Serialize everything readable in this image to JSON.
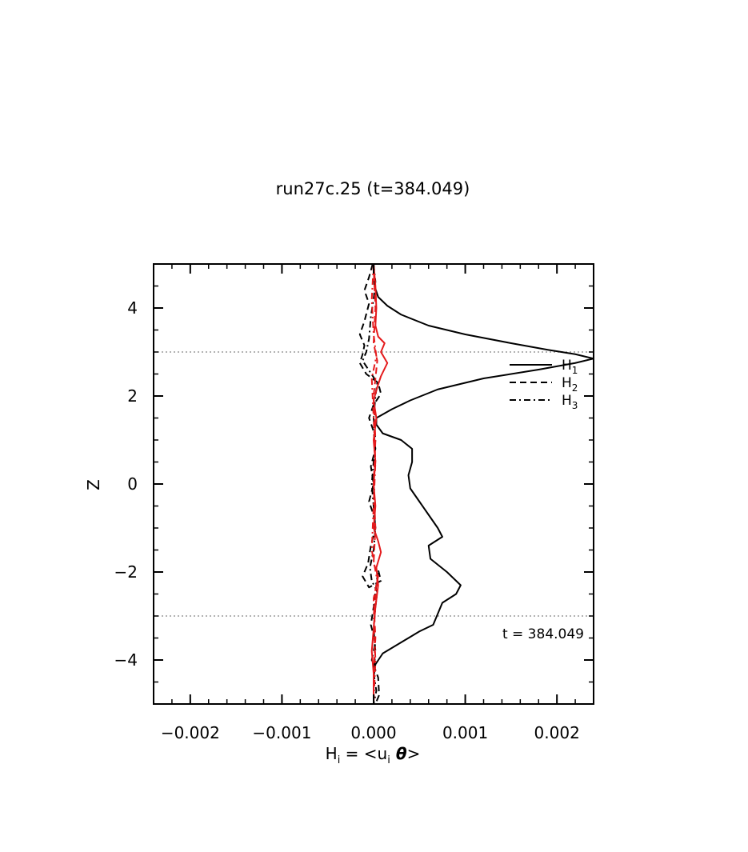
{
  "chart_data": {
    "type": "line",
    "title": "run27c.25 (t=384.049)",
    "xlabel": {
      "base": "H",
      "sub": "i",
      "mid": " = <u",
      "sub2": "i",
      "theta": " θ",
      "end": ">"
    },
    "ylabel": "Z",
    "xlim": [
      -0.0024,
      0.0024
    ],
    "ylim": [
      -5,
      5
    ],
    "xticks": [
      -0.002,
      -0.001,
      0.0,
      0.001,
      0.002
    ],
    "xtick_labels": [
      "−0.002",
      "−0.001",
      "0.000",
      "0.001",
      "0.002"
    ],
    "yticks": [
      -4,
      -2,
      0,
      2,
      4
    ],
    "ytick_labels": [
      "−4",
      "−2",
      "0",
      "2",
      "4"
    ],
    "reference_lines_y": [
      3,
      -3
    ],
    "annotation": "t = 384.049",
    "legend": {
      "placement": "right, below upper reference line",
      "entries": [
        {
          "base": "H",
          "sub": "1",
          "style": "solid"
        },
        {
          "base": "H",
          "sub": "2",
          "style": "dashed"
        },
        {
          "base": "H",
          "sub": "3",
          "style": "dashdot"
        }
      ]
    },
    "series": [
      {
        "style": "solid",
        "color": "#000000",
        "points": [
          [
            0.0,
            5.0
          ],
          [
            1e-05,
            4.5
          ],
          [
            5e-05,
            4.25
          ],
          [
            0.00015,
            4.05
          ],
          [
            0.0003,
            3.85
          ],
          [
            0.0006,
            3.6
          ],
          [
            0.001,
            3.4
          ],
          [
            0.0015,
            3.2
          ],
          [
            0.0019,
            3.05
          ],
          [
            0.0022,
            2.95
          ],
          [
            0.0024,
            2.85
          ],
          [
            0.0022,
            2.75
          ],
          [
            0.0018,
            2.6
          ],
          [
            0.0012,
            2.4
          ],
          [
            0.0007,
            2.15
          ],
          [
            0.0004,
            1.9
          ],
          [
            0.0002,
            1.7
          ],
          [
            3e-05,
            1.5
          ],
          [
            3e-05,
            1.35
          ],
          [
            0.0001,
            1.15
          ],
          [
            0.0003,
            1.0
          ],
          [
            0.00042,
            0.8
          ],
          [
            0.00042,
            0.5
          ],
          [
            0.00038,
            0.2
          ],
          [
            0.0004,
            -0.1
          ],
          [
            0.0005,
            -0.4
          ],
          [
            0.0006,
            -0.7
          ],
          [
            0.0007,
            -1.0
          ],
          [
            0.00075,
            -1.2
          ],
          [
            0.0006,
            -1.4
          ],
          [
            0.00062,
            -1.7
          ],
          [
            0.0008,
            -2.0
          ],
          [
            0.00095,
            -2.3
          ],
          [
            0.0009,
            -2.5
          ],
          [
            0.00075,
            -2.7
          ],
          [
            0.0007,
            -2.95
          ],
          [
            0.00065,
            -3.2
          ],
          [
            0.0005,
            -3.35
          ],
          [
            0.0003,
            -3.6
          ],
          [
            0.0001,
            -3.85
          ],
          [
            2e-05,
            -4.1
          ],
          [
            0.0,
            -4.4
          ],
          [
            0.0,
            -5.0
          ]
        ]
      },
      {
        "style": "dashed",
        "color": "#000000",
        "points": [
          [
            -1e-05,
            5.0
          ],
          [
            -5e-05,
            4.7
          ],
          [
            -0.0001,
            4.4
          ],
          [
            -5e-05,
            4.1
          ],
          [
            -0.0001,
            3.7
          ],
          [
            -0.00015,
            3.4
          ],
          [
            -0.0001,
            3.15
          ],
          [
            -0.00012,
            2.95
          ],
          [
            -0.00015,
            2.75
          ],
          [
            -8e-05,
            2.5
          ],
          [
            5e-05,
            2.3
          ],
          [
            8e-05,
            2.05
          ],
          [
            0.0,
            1.8
          ],
          [
            -5e-05,
            1.5
          ],
          [
            0.0,
            1.2
          ],
          [
            2e-05,
            0.8
          ],
          [
            -3e-05,
            0.4
          ],
          [
            0.0,
            0.0
          ],
          [
            -5e-05,
            -0.4
          ],
          [
            0.0,
            -0.7
          ],
          [
            2e-05,
            -1.0
          ],
          [
            -3e-05,
            -1.4
          ],
          [
            -6e-05,
            -1.8
          ],
          [
            -0.00012,
            -2.1
          ],
          [
            -5e-05,
            -2.35
          ],
          [
            8e-05,
            -2.2
          ],
          [
            5e-05,
            -1.95
          ],
          [
            0.0,
            -2.8
          ],
          [
            -3e-05,
            -3.2
          ],
          [
            2e-05,
            -3.6
          ],
          [
            -2e-05,
            -4.0
          ],
          [
            5e-05,
            -4.4
          ],
          [
            6e-05,
            -4.8
          ],
          [
            2e-05,
            -5.0
          ]
        ]
      },
      {
        "style": "dashdot",
        "color": "#000000",
        "points": [
          [
            0.0,
            5.0
          ],
          [
            2e-05,
            4.6
          ],
          [
            0.0,
            4.2
          ],
          [
            -3e-05,
            3.8
          ],
          [
            -5e-05,
            3.3
          ],
          [
            -8e-05,
            3.0
          ],
          [
            -0.00012,
            2.8
          ],
          [
            -4e-05,
            2.55
          ],
          [
            4e-05,
            2.3
          ],
          [
            2e-05,
            2.0
          ],
          [
            0.0,
            1.5
          ],
          [
            2e-05,
            1.0
          ],
          [
            0.0,
            0.5
          ],
          [
            -2e-05,
            0.0
          ],
          [
            0.0,
            -0.5
          ],
          [
            2e-05,
            -1.0
          ],
          [
            0.0,
            -1.5
          ],
          [
            -4e-05,
            -1.9
          ],
          [
            -2e-05,
            -2.2
          ],
          [
            4e-05,
            -2.45
          ],
          [
            2e-05,
            -2.8
          ],
          [
            0.0,
            -3.3
          ],
          [
            2e-05,
            -3.8
          ],
          [
            0.0,
            -4.3
          ],
          [
            3e-05,
            -4.7
          ],
          [
            0.0,
            -5.0
          ]
        ]
      },
      {
        "style": "solid",
        "color": "#e41a1c",
        "points": [
          [
            0.0,
            5.0
          ],
          [
            2e-05,
            4.5
          ],
          [
            3e-05,
            4.0
          ],
          [
            2e-05,
            3.6
          ],
          [
            5e-05,
            3.35
          ],
          [
            0.00012,
            3.2
          ],
          [
            8e-05,
            3.0
          ],
          [
            0.00015,
            2.75
          ],
          [
            8e-05,
            2.45
          ],
          [
            4e-05,
            2.2
          ],
          [
            0.0,
            1.9
          ],
          [
            3e-05,
            1.5
          ],
          [
            0.0,
            1.0
          ],
          [
            2e-05,
            0.5
          ],
          [
            0.0,
            0.0
          ],
          [
            2e-05,
            -0.5
          ],
          [
            0.0,
            -1.0
          ],
          [
            5e-05,
            -1.3
          ],
          [
            8e-05,
            -1.55
          ],
          [
            3e-05,
            -1.9
          ],
          [
            5e-05,
            -2.3
          ],
          [
            2e-05,
            -2.8
          ],
          [
            0.0,
            -3.3
          ],
          [
            -2e-05,
            -3.8
          ],
          [
            0.0,
            -4.3
          ],
          [
            0.0,
            -5.0
          ]
        ]
      },
      {
        "style": "dashed",
        "color": "#e41a1c",
        "points": [
          [
            0.0,
            5.0
          ],
          [
            2e-05,
            4.0
          ],
          [
            0.0,
            3.2
          ],
          [
            4e-05,
            2.8
          ],
          [
            0.0,
            2.0
          ],
          [
            2e-05,
            1.0
          ],
          [
            0.0,
            0.0
          ],
          [
            2e-05,
            -1.0
          ],
          [
            0.0,
            -1.8
          ],
          [
            5e-05,
            -2.1
          ],
          [
            0.0,
            -2.6
          ],
          [
            2e-05,
            -3.5
          ],
          [
            0.0,
            -4.3
          ],
          [
            0.0,
            -5.0
          ]
        ]
      },
      {
        "style": "dashdot",
        "color": "#e41a1c",
        "points": [
          [
            0.0,
            5.0
          ],
          [
            -2e-05,
            4.2
          ],
          [
            0.0,
            3.4
          ],
          [
            3e-05,
            2.9
          ],
          [
            -2e-05,
            2.4
          ],
          [
            0.0,
            1.5
          ],
          [
            2e-05,
            0.5
          ],
          [
            0.0,
            -0.5
          ],
          [
            -2e-05,
            -1.5
          ],
          [
            4e-05,
            -2.2
          ],
          [
            0.0,
            -3.0
          ],
          [
            2e-05,
            -4.0
          ],
          [
            0.0,
            -5.0
          ]
        ]
      }
    ]
  }
}
